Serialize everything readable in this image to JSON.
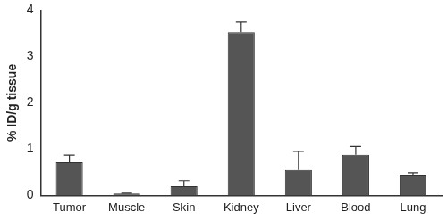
{
  "chart_data": {
    "type": "bar",
    "y_label": "% ID/g tissue",
    "categories": [
      "Tumor",
      "Muscle",
      "Skin",
      "Kidney",
      "Liver",
      "Blood",
      "Lung"
    ],
    "values": [
      0.72,
      0.04,
      0.2,
      3.52,
      0.55,
      0.88,
      0.43
    ],
    "errors": [
      0.15,
      0.01,
      0.12,
      0.22,
      0.4,
      0.18,
      0.06
    ],
    "color": "#555555",
    "ylim": [
      0,
      4
    ],
    "yticks": [
      0,
      1,
      2,
      3,
      4
    ],
    "grid": false
  }
}
